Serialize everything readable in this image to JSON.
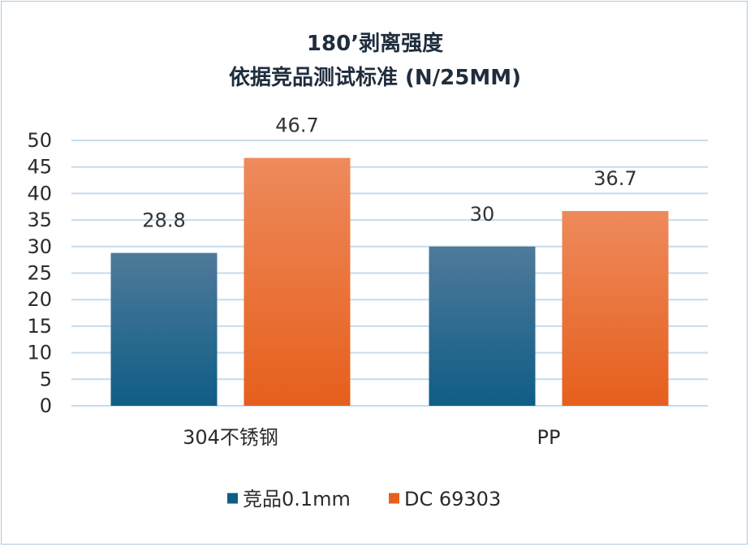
{
  "chart_data": {
    "type": "bar",
    "title": "180’剥离强度",
    "subtitle": "依据竞品测试标准 (N/25MM)",
    "categories": [
      "304不锈钢",
      "PP"
    ],
    "series": [
      {
        "name": "竞品0.1mm",
        "values": [
          28.8,
          30
        ],
        "labels": [
          "28.8",
          "30"
        ],
        "color_top": "#4f7a9a",
        "color_bottom": "#0f5d86"
      },
      {
        "name": "DC 69303",
        "values": [
          46.7,
          36.7
        ],
        "labels": [
          "46.7",
          "36.7"
        ],
        "color_top": "#ee8a5c",
        "color_bottom": "#e65f1c"
      }
    ],
    "ylim": [
      0,
      50
    ],
    "yticks": [
      "0",
      "5",
      "10",
      "15",
      "20",
      "25",
      "30",
      "35",
      "40",
      "45",
      "50"
    ],
    "grid": true,
    "legend": "bottom",
    "grid_color": "#c5dcee",
    "border_color": "#a9c9e6"
  }
}
